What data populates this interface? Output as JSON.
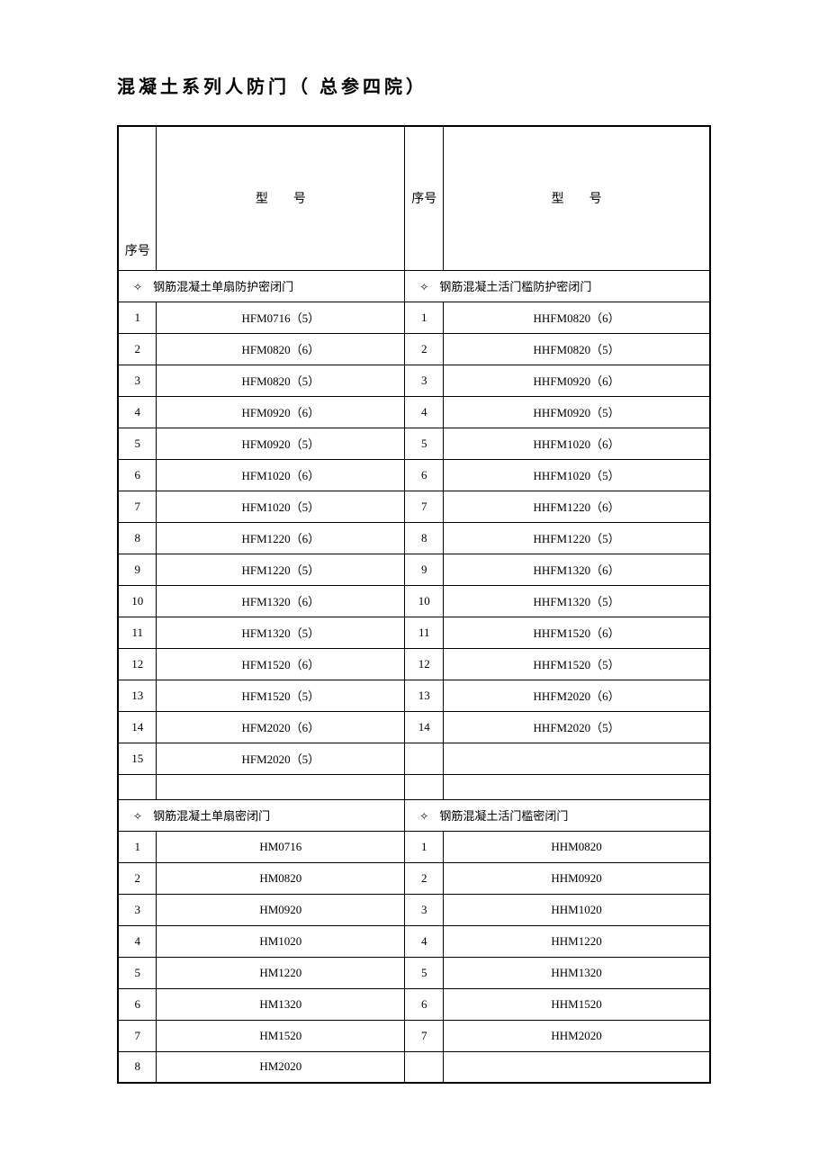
{
  "title": "混凝土系列人防门（ 总参四院）",
  "headers": {
    "seq_left": "序号",
    "model_left": "型　　号",
    "seq_right": "序号",
    "model_right": "型　　号"
  },
  "bullet": "✧",
  "section1": {
    "left_title": "钢筋混凝土单扇防护密闭门",
    "right_title": "钢筋混凝土活门槛防护密闭门",
    "left_rows": [
      {
        "seq": "1",
        "model": "HFM0716（5）"
      },
      {
        "seq": "2",
        "model": "HFM0820（6）"
      },
      {
        "seq": "3",
        "model": "HFM0820（5）"
      },
      {
        "seq": "4",
        "model": "HFM0920（6）"
      },
      {
        "seq": "5",
        "model": "HFM0920（5）"
      },
      {
        "seq": "6",
        "model": "HFM1020（6）"
      },
      {
        "seq": "7",
        "model": "HFM1020（5）"
      },
      {
        "seq": "8",
        "model": "HFM1220（6）"
      },
      {
        "seq": "9",
        "model": "HFM1220（5）"
      },
      {
        "seq": "10",
        "model": "HFM1320（6）"
      },
      {
        "seq": "11",
        "model": "HFM1320（5）"
      },
      {
        "seq": "12",
        "model": "HFM1520（6）"
      },
      {
        "seq": "13",
        "model": "HFM1520（5）"
      },
      {
        "seq": "14",
        "model": "HFM2020（6）"
      },
      {
        "seq": "15",
        "model": "HFM2020（5）"
      }
    ],
    "right_rows": [
      {
        "seq": "1",
        "model": "HHFM0820（6）"
      },
      {
        "seq": "2",
        "model": "HHFM0820（5）"
      },
      {
        "seq": "3",
        "model": "HHFM0920（6）"
      },
      {
        "seq": "4",
        "model": "HHFM0920（5）"
      },
      {
        "seq": "5",
        "model": "HHFM1020（6）"
      },
      {
        "seq": "6",
        "model": "HHFM1020（5）"
      },
      {
        "seq": "7",
        "model": "HHFM1220（6）"
      },
      {
        "seq": "8",
        "model": "HHFM1220（5）"
      },
      {
        "seq": "9",
        "model": "HHFM1320（6）"
      },
      {
        "seq": "10",
        "model": "HHFM1320（5）"
      },
      {
        "seq": "11",
        "model": "HHFM1520（6）"
      },
      {
        "seq": "12",
        "model": "HHFM1520（5）"
      },
      {
        "seq": "13",
        "model": "HHFM2020（6）"
      },
      {
        "seq": "14",
        "model": "HHFM2020（5）"
      },
      {
        "seq": "",
        "model": ""
      }
    ]
  },
  "section2": {
    "left_title": "钢筋混凝土单扇密闭门",
    "right_title": "钢筋混凝土活门槛密闭门",
    "left_rows": [
      {
        "seq": "1",
        "model": "HM0716"
      },
      {
        "seq": "2",
        "model": "HM0820"
      },
      {
        "seq": "3",
        "model": "HM0920"
      },
      {
        "seq": "4",
        "model": "HM1020"
      },
      {
        "seq": "5",
        "model": "HM1220"
      },
      {
        "seq": "6",
        "model": "HM1320"
      },
      {
        "seq": "7",
        "model": "HM1520"
      },
      {
        "seq": "8",
        "model": "HM2020"
      }
    ],
    "right_rows": [
      {
        "seq": "1",
        "model": "HHM0820"
      },
      {
        "seq": "2",
        "model": "HHM0920"
      },
      {
        "seq": "3",
        "model": "HHM1020"
      },
      {
        "seq": "4",
        "model": "HHM1220"
      },
      {
        "seq": "5",
        "model": "HHM1320"
      },
      {
        "seq": "6",
        "model": "HHM1520"
      },
      {
        "seq": "7",
        "model": "HHM2020"
      },
      {
        "seq": "",
        "model": ""
      }
    ]
  }
}
